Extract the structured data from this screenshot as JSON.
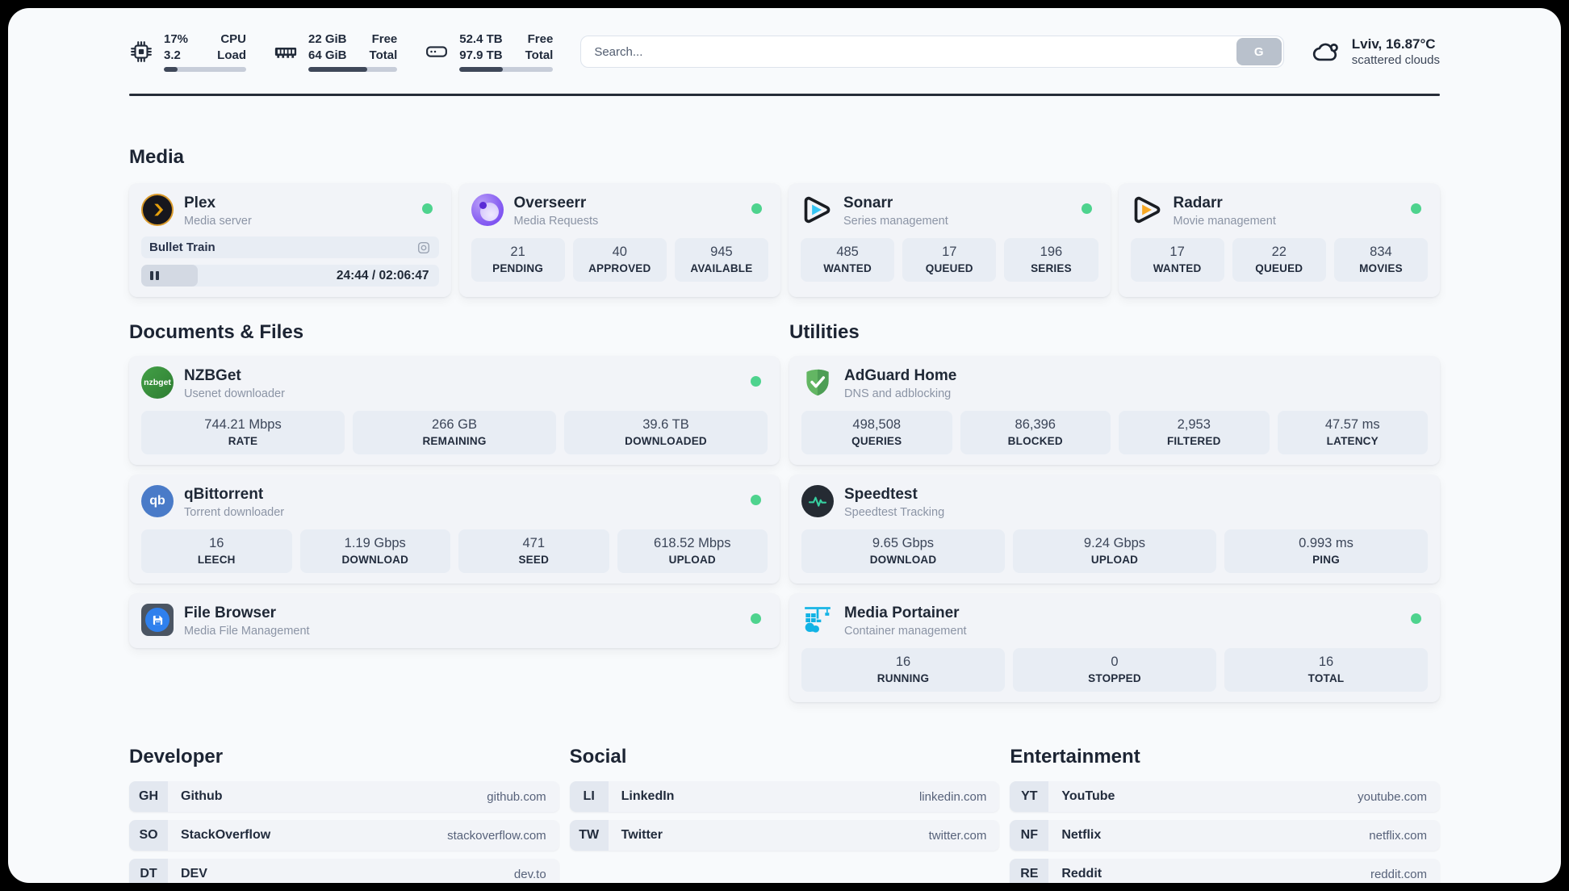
{
  "header": {
    "system": [
      {
        "icon": "cpu-icon",
        "top_value": "17%",
        "top_label": "CPU",
        "bottom_value": "3.2",
        "bottom_label": "Load",
        "progress_pct": 17
      },
      {
        "icon": "ram-icon",
        "top_value": "22 GiB",
        "top_label": "Free",
        "bottom_value": "64 GiB",
        "bottom_label": "Total",
        "progress_pct": 66
      },
      {
        "icon": "disk-icon",
        "top_value": "52.4 TB",
        "top_label": "Free",
        "bottom_value": "97.9 TB",
        "bottom_label": "Total",
        "progress_pct": 46
      }
    ],
    "search": {
      "placeholder": "Search...",
      "button_label": "G"
    },
    "weather": {
      "summary": "Lviv, 16.87°C",
      "condition": "scattered clouds"
    }
  },
  "colors": {
    "page_bg": "#f8fafc",
    "card_bg": "#f2f4f8",
    "pill_bg": "#e8edf4",
    "text_primary": "#212b3c",
    "text_secondary": "#8b94a5",
    "status_green": "#4ed38e",
    "plex_amber": "#e5a00d",
    "sonarr_cyan": "#35c5f4",
    "radarr_amber": "#f7a823",
    "adguard_green": "#63b663",
    "portainer_cyan": "#12b3e5"
  },
  "sections": {
    "media": {
      "title": "Media",
      "plex": {
        "title": "Plex",
        "subtitle": "Media server",
        "now_playing": "Bullet Train",
        "time": "24:44 / 02:06:47",
        "progress_pct": 19
      },
      "overseerr": {
        "title": "Overseerr",
        "subtitle": "Media Requests",
        "stats": [
          {
            "value": "21",
            "label": "PENDING"
          },
          {
            "value": "40",
            "label": "APPROVED"
          },
          {
            "value": "945",
            "label": "AVAILABLE"
          }
        ]
      },
      "sonarr": {
        "title": "Sonarr",
        "subtitle": "Series management",
        "stats": [
          {
            "value": "485",
            "label": "WANTED"
          },
          {
            "value": "17",
            "label": "QUEUED"
          },
          {
            "value": "196",
            "label": "SERIES"
          }
        ]
      },
      "radarr": {
        "title": "Radarr",
        "subtitle": "Movie management",
        "stats": [
          {
            "value": "17",
            "label": "WANTED"
          },
          {
            "value": "22",
            "label": "QUEUED"
          },
          {
            "value": "834",
            "label": "MOVIES"
          }
        ]
      }
    },
    "documents": {
      "title": "Documents & Files",
      "nzbget": {
        "title": "NZBGet",
        "subtitle": "Usenet downloader",
        "icon_text": "nzbget",
        "stats": [
          {
            "value": "744.21 Mbps",
            "label": "RATE"
          },
          {
            "value": "266 GB",
            "label": "REMAINING"
          },
          {
            "value": "39.6 TB",
            "label": "DOWNLOADED"
          }
        ]
      },
      "qbittorrent": {
        "title": "qBittorrent",
        "subtitle": "Torrent downloader",
        "icon_text": "qb",
        "stats": [
          {
            "value": "16",
            "label": "LEECH"
          },
          {
            "value": "1.19 Gbps",
            "label": "DOWNLOAD"
          },
          {
            "value": "471",
            "label": "SEED"
          },
          {
            "value": "618.52 Mbps",
            "label": "UPLOAD"
          }
        ]
      },
      "filebrowser": {
        "title": "File Browser",
        "subtitle": "Media File Management"
      }
    },
    "utilities": {
      "title": "Utilities",
      "adguard": {
        "title": "AdGuard Home",
        "subtitle": "DNS and adblocking",
        "stats": [
          {
            "value": "498,508",
            "label": "QUERIES"
          },
          {
            "value": "86,396",
            "label": "BLOCKED"
          },
          {
            "value": "2,953",
            "label": "FILTERED"
          },
          {
            "value": "47.57 ms",
            "label": "LATENCY"
          }
        ]
      },
      "speedtest": {
        "title": "Speedtest",
        "subtitle": "Speedtest Tracking",
        "stats": [
          {
            "value": "9.65 Gbps",
            "label": "DOWNLOAD"
          },
          {
            "value": "9.24 Gbps",
            "label": "UPLOAD"
          },
          {
            "value": "0.993 ms",
            "label": "PING"
          }
        ]
      },
      "portainer": {
        "title": "Media Portainer",
        "subtitle": "Container management",
        "stats": [
          {
            "value": "16",
            "label": "RUNNING"
          },
          {
            "value": "0",
            "label": "STOPPED"
          },
          {
            "value": "16",
            "label": "TOTAL"
          }
        ]
      }
    },
    "links": {
      "developer": {
        "title": "Developer",
        "items": [
          {
            "abbr": "GH",
            "label": "Github",
            "url": "github.com"
          },
          {
            "abbr": "SO",
            "label": "StackOverflow",
            "url": "stackoverflow.com"
          },
          {
            "abbr": "DT",
            "label": "DEV",
            "url": "dev.to"
          }
        ]
      },
      "social": {
        "title": "Social",
        "items": [
          {
            "abbr": "LI",
            "label": "LinkedIn",
            "url": "linkedin.com"
          },
          {
            "abbr": "TW",
            "label": "Twitter",
            "url": "twitter.com"
          }
        ]
      },
      "entertainment": {
        "title": "Entertainment",
        "items": [
          {
            "abbr": "YT",
            "label": "YouTube",
            "url": "youtube.com"
          },
          {
            "abbr": "NF",
            "label": "Netflix",
            "url": "netflix.com"
          },
          {
            "abbr": "RE",
            "label": "Reddit",
            "url": "reddit.com"
          }
        ]
      }
    }
  }
}
